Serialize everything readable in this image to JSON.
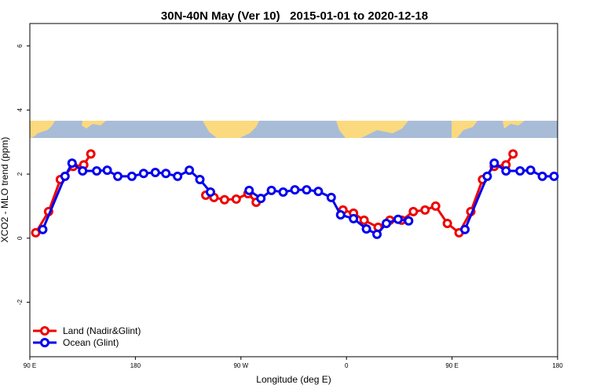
{
  "chart_data": {
    "type": "line",
    "title": "30N-40N May (Ver 10)   2015-01-01 to 2020-12-18",
    "x_label": "Longitude (deg E)",
    "y_label": "XCO2 - MLO trend (ppm)",
    "xlim": [
      90,
      540
    ],
    "xticks": [
      {
        "value": 90,
        "label": "90 E"
      },
      180,
      {
        "value": 270,
        "label": "90 W"
      },
      {
        "value": 360,
        "label": "0"
      },
      {
        "value": 450,
        "label": "90 E"
      },
      {
        "value": 540,
        "label": "180"
      }
    ],
    "ylim": [
      -3.7,
      6.7
    ],
    "yticks": [
      -2,
      0,
      2,
      4,
      6
    ],
    "legend_position": "bottom-left",
    "series": [
      {
        "name": "Land (Nadir&Glint)",
        "color": "#ee0000",
        "x": [
          95,
          106,
          116,
          127,
          136,
          142,
          null,
          240,
          247,
          256,
          266,
          276,
          283,
          null,
          357,
          366,
          375,
          387,
          397,
          407,
          417,
          427,
          436,
          446,
          456,
          466,
          476,
          486,
          496,
          502
        ],
        "values": [
          0.17,
          0.83,
          1.83,
          2.24,
          2.29,
          2.63,
          null,
          1.34,
          1.27,
          1.2,
          1.22,
          1.39,
          1.12,
          null,
          0.88,
          0.78,
          0.56,
          0.34,
          0.56,
          0.56,
          0.83,
          0.88,
          1.0,
          0.46,
          0.17,
          0.83,
          1.83,
          2.24,
          2.29,
          2.63
        ]
      },
      {
        "name": "Ocean (Glint)",
        "color": "#0000ee",
        "x": [
          101,
          120,
          126,
          135,
          147,
          156,
          165,
          177,
          187,
          197,
          206,
          216,
          226,
          235,
          244,
          null,
          277,
          287,
          296,
          306,
          316,
          326,
          336,
          347,
          355,
          366,
          377,
          386,
          394,
          404,
          413,
          null,
          461,
          480,
          486,
          496,
          508,
          517,
          527,
          537
        ],
        "values": [
          0.27,
          1.93,
          2.34,
          2.1,
          2.1,
          2.12,
          1.93,
          1.93,
          2.02,
          2.05,
          2.02,
          1.93,
          2.12,
          1.83,
          1.44,
          null,
          1.49,
          1.24,
          1.49,
          1.44,
          1.51,
          1.51,
          1.46,
          1.27,
          0.73,
          0.61,
          0.29,
          0.12,
          0.46,
          0.59,
          0.54,
          null,
          0.27,
          1.93,
          2.34,
          2.1,
          2.1,
          2.12,
          1.93,
          1.93
        ]
      }
    ]
  }
}
